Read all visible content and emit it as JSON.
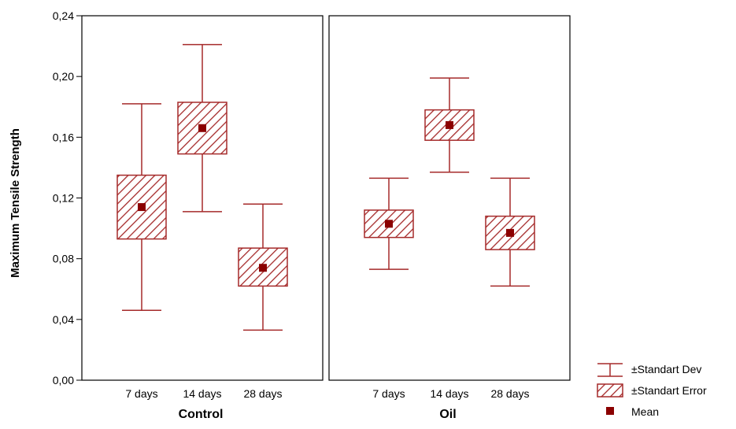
{
  "chart_data": {
    "type": "box",
    "ylabel": "Maximum Tensile Strength",
    "ylim": [
      0,
      0.24
    ],
    "yticks": [
      "0,00",
      "0,04",
      "0,08",
      "0,12",
      "0,16",
      "0,20",
      "0,24"
    ],
    "categories": [
      "7 days",
      "14 days",
      "28 days"
    ],
    "colors": {
      "series": "#a52a2a",
      "mean": "#8b0000",
      "frame": "#000000"
    },
    "panels": [
      {
        "title": "Control",
        "groups": [
          {
            "category": "7 days",
            "mean": 0.114,
            "se_low": 0.093,
            "se_high": 0.135,
            "sd_low": 0.046,
            "sd_high": 0.182
          },
          {
            "category": "14 days",
            "mean": 0.166,
            "se_low": 0.149,
            "se_high": 0.183,
            "sd_low": 0.111,
            "sd_high": 0.221
          },
          {
            "category": "28 days",
            "mean": 0.074,
            "se_low": 0.062,
            "se_high": 0.087,
            "sd_low": 0.033,
            "sd_high": 0.116
          }
        ]
      },
      {
        "title": "Oil",
        "groups": [
          {
            "category": "7 days",
            "mean": 0.103,
            "se_low": 0.094,
            "se_high": 0.112,
            "sd_low": 0.073,
            "sd_high": 0.133
          },
          {
            "category": "14 days",
            "mean": 0.168,
            "se_low": 0.158,
            "se_high": 0.178,
            "sd_low": 0.137,
            "sd_high": 0.199
          },
          {
            "category": "28 days",
            "mean": 0.097,
            "se_low": 0.086,
            "se_high": 0.108,
            "sd_low": 0.062,
            "sd_high": 0.133
          }
        ]
      }
    ],
    "legend": {
      "placement": "bottom-right",
      "entries": [
        "±Standart Dev",
        "±Standart Error",
        "Mean"
      ]
    }
  }
}
